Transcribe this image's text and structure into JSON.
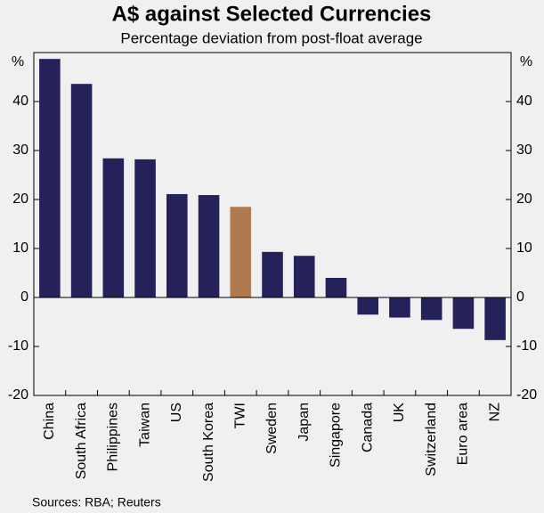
{
  "chart_data": {
    "type": "bar",
    "title": "A$ against Selected Currencies",
    "subtitle": "Percentage deviation from post-float average",
    "y_label": "%",
    "source": "Sources: RBA; Reuters",
    "categories": [
      "China",
      "South Africa",
      "Philippines",
      "Taiwan",
      "US",
      "South Korea",
      "TWI",
      "Sweden",
      "Japan",
      "Singapore",
      "Canada",
      "UK",
      "Switzerland",
      "Euro area",
      "NZ"
    ],
    "values": [
      48.7,
      43.6,
      28.4,
      28.2,
      21.1,
      20.9,
      18.5,
      9.3,
      8.5,
      4.0,
      -3.5,
      -4.1,
      -4.6,
      -6.4,
      -8.7
    ],
    "colors": [
      "#25215b",
      "#25215b",
      "#25215b",
      "#25215b",
      "#25215b",
      "#25215b",
      "#b07a4e",
      "#25215b",
      "#25215b",
      "#25215b",
      "#25215b",
      "#25215b",
      "#25215b",
      "#25215b",
      "#25215b"
    ],
    "ylim": [
      -20,
      50
    ],
    "yticks": [
      -20,
      -10,
      0,
      10,
      20,
      30,
      40
    ]
  }
}
